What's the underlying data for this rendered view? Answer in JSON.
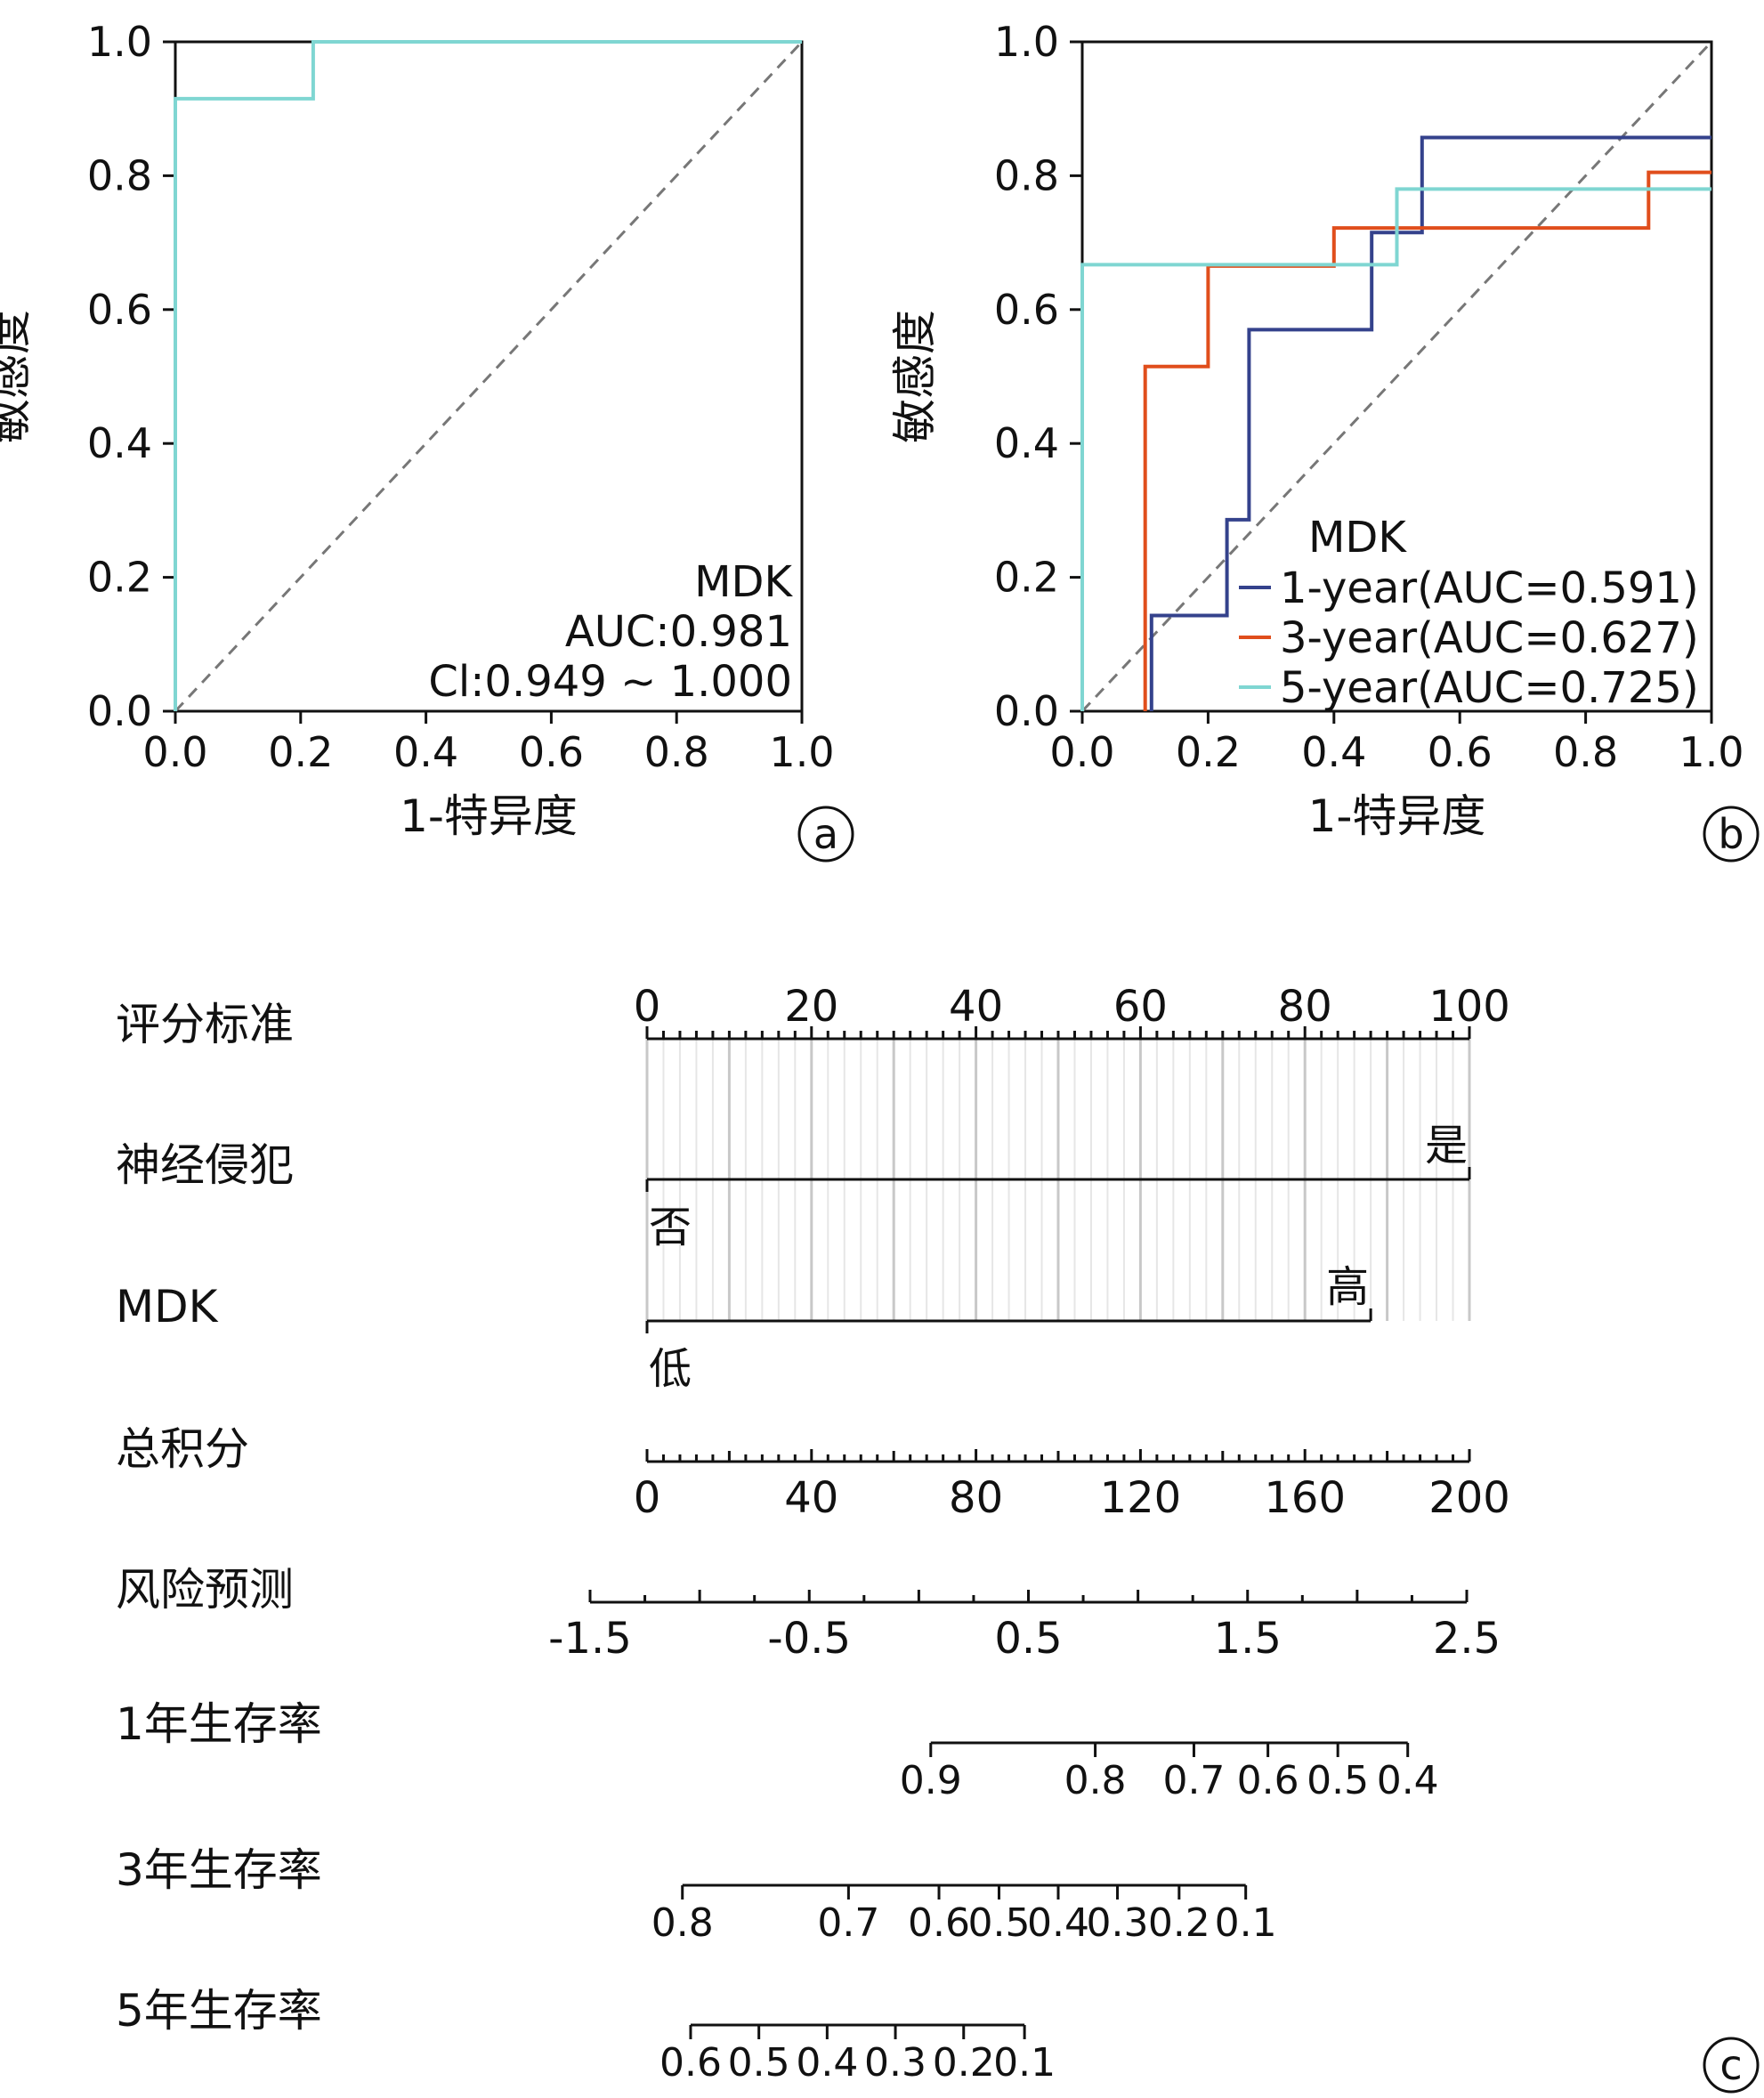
{
  "chart_data": [
    {
      "panel": "a",
      "type": "line",
      "xlabel": "1-特异度",
      "ylabel": "敏感度",
      "xlim": [
        0,
        1
      ],
      "ylim": [
        0,
        1
      ],
      "x_ticks": [
        "0.0",
        "0.2",
        "0.4",
        "0.6",
        "0.8",
        "1.0"
      ],
      "y_ticks": [
        "0.0",
        "0.2",
        "0.4",
        "0.6",
        "0.8",
        "1.0"
      ],
      "reference_line": "diagonal-dashed",
      "series": [
        {
          "color": "#7fd6d2",
          "x": [
            0,
            0,
            0.22,
            0.22,
            1.0
          ],
          "y": [
            0,
            0.915,
            0.915,
            1.0,
            1.0
          ]
        }
      ],
      "annotation": [
        "MDK",
        "AUC:0.981",
        "Cl:0.949 ~ 1.000"
      ],
      "badge": "a"
    },
    {
      "panel": "b",
      "type": "line",
      "xlabel": "1-特异度",
      "ylabel": "敏感度",
      "xlim": [
        0,
        1
      ],
      "ylim": [
        0,
        1
      ],
      "x_ticks": [
        "0.0",
        "0.2",
        "0.4",
        "0.6",
        "0.8",
        "1.0"
      ],
      "y_ticks": [
        "0.0",
        "0.2",
        "0.4",
        "0.6",
        "0.8",
        "1.0"
      ],
      "reference_line": "diagonal-dashed",
      "legend_title": "MDK",
      "legend_position": "bottom-right",
      "series": [
        {
          "name": "1-year(AUC=0.591)",
          "color": "#34428c",
          "x": [
            0.11,
            0.11,
            0.23,
            0.23,
            0.265,
            0.265,
            0.46,
            0.46,
            0.54,
            0.54,
            1.0
          ],
          "y": [
            0,
            0.143,
            0.143,
            0.286,
            0.286,
            0.57,
            0.57,
            0.715,
            0.715,
            0.857,
            0.857
          ]
        },
        {
          "name": "3-year(AUC=0.627)",
          "color": "#e04e1c",
          "x": [
            0.1,
            0.1,
            0.2,
            0.2,
            0.4,
            0.4,
            0.9,
            0.9,
            1.0
          ],
          "y": [
            0,
            0.515,
            0.515,
            0.665,
            0.665,
            0.722,
            0.722,
            0.805,
            0.805
          ]
        },
        {
          "name": "5-year(AUC=0.725)",
          "color": "#7fd6d2",
          "x": [
            0,
            0,
            0.5,
            0.5,
            1.0
          ],
          "y": [
            0,
            0.667,
            0.667,
            0.78,
            0.78
          ]
        }
      ],
      "badge": "b"
    },
    {
      "panel": "c",
      "type": "nomogram",
      "badge": "c",
      "rows": [
        {
          "label": "评分标准",
          "min": 0,
          "max": 100,
          "ticks": [
            0,
            20,
            40,
            60,
            80,
            100
          ],
          "tick_labels": [
            "0",
            "20",
            "40",
            "60",
            "80",
            "100"
          ],
          "minor_step": 2
        },
        {
          "label": "神经侵犯",
          "min": 0,
          "max": 100,
          "levels": [
            {
              "label": "否",
              "value": 0
            },
            {
              "label": "是",
              "value": 100
            }
          ]
        },
        {
          "label": "MDK",
          "min": 0,
          "max": 88,
          "levels": [
            {
              "label": "低",
              "value": 0
            },
            {
              "label": "高",
              "value": 88
            }
          ]
        },
        {
          "label": "总积分",
          "min": 0,
          "max": 200,
          "ticks": [
            0,
            40,
            80,
            120,
            160,
            200
          ],
          "tick_labels": [
            "0",
            "40",
            "80",
            "120",
            "160",
            "200"
          ],
          "minor_step": 4
        },
        {
          "label": "风险预测",
          "min": -1.5,
          "max": 2.5,
          "ticks": [
            -1.5,
            -1.0,
            -0.5,
            0.0,
            0.5,
            1.0,
            1.5,
            2.0,
            2.5
          ],
          "tick_labels": [
            "-1.5",
            "",
            "-0.5",
            "",
            "0.5",
            "",
            "1.5",
            "",
            "2.5"
          ]
        },
        {
          "label": "1年生存率",
          "ticks_total_points": [
            34.5,
            54.5,
            66.5,
            75.5,
            84,
            92.5
          ],
          "tick_labels": [
            "0.9",
            "0.8",
            "0.7",
            "0.6",
            "0.5",
            "0.4"
          ]
        },
        {
          "label": "3年生存率",
          "ticks_total_points": [
            4.3,
            24.5,
            35.5,
            42.8,
            50.0,
            57.2,
            64.7,
            72.8
          ],
          "tick_labels": [
            "0.8",
            "0.7",
            "0.6",
            "0.5",
            "0.4",
            "0.3",
            "0.2",
            "0.1"
          ]
        },
        {
          "label": "5年生存率",
          "ticks_total_points": [
            5.3,
            13.6,
            21.9,
            30.2,
            38.5,
            45.9
          ],
          "tick_labels": [
            "0.6",
            "0.5",
            "0.4",
            "0.3",
            "0.2",
            "0.1"
          ]
        }
      ]
    }
  ]
}
